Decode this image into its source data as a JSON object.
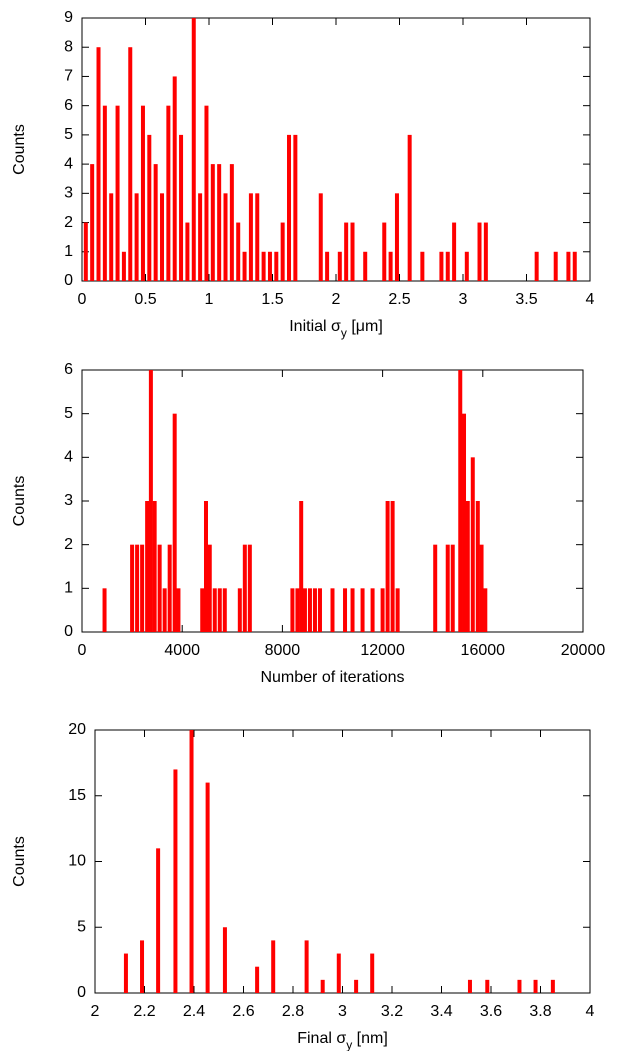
{
  "chart_data": [
    {
      "type": "bar",
      "color": "#ff0000",
      "ylabel": "Counts",
      "xlabel": [
        {
          "text": "Initial σ"
        },
        {
          "text": "y",
          "sub": true
        },
        {
          "text": " [μm]"
        }
      ],
      "xlim": [
        0,
        4
      ],
      "xticks": [
        0,
        0.5,
        1,
        1.5,
        2,
        2.5,
        3,
        3.5,
        4
      ],
      "ylim": [
        0,
        9
      ],
      "yticks": [
        0,
        1,
        2,
        3,
        4,
        5,
        6,
        7,
        8,
        9
      ],
      "x": [
        0.03,
        0.08,
        0.13,
        0.18,
        0.23,
        0.28,
        0.33,
        0.38,
        0.43,
        0.48,
        0.53,
        0.58,
        0.63,
        0.68,
        0.73,
        0.78,
        0.83,
        0.88,
        0.93,
        0.98,
        1.03,
        1.08,
        1.13,
        1.18,
        1.23,
        1.28,
        1.33,
        1.38,
        1.43,
        1.48,
        1.53,
        1.58,
        1.63,
        1.68,
        1.88,
        1.93,
        2.03,
        2.08,
        2.13,
        2.23,
        2.38,
        2.43,
        2.48,
        2.58,
        2.68,
        2.83,
        2.88,
        2.93,
        3.03,
        3.13,
        3.18,
        3.58,
        3.73,
        3.83,
        3.88
      ],
      "values": [
        2,
        4,
        8,
        6,
        3,
        6,
        1,
        8,
        3,
        6,
        5,
        4,
        3,
        6,
        7,
        5,
        2,
        9,
        3,
        6,
        4,
        4,
        3,
        4,
        2,
        1,
        3,
        3,
        1,
        1,
        1,
        2,
        5,
        5,
        3,
        1,
        1,
        2,
        2,
        1,
        2,
        1,
        3,
        5,
        1,
        1,
        1,
        2,
        1,
        2,
        2,
        1,
        1,
        1,
        1
      ]
    },
    {
      "type": "bar",
      "color": "#ff0000",
      "ylabel": "Counts",
      "xlabel": [
        {
          "text": "Number of iterations"
        }
      ],
      "xlim": [
        0,
        20000
      ],
      "xticks": [
        0,
        4000,
        8000,
        12000,
        16000,
        20000
      ],
      "ylim": [
        0,
        6
      ],
      "yticks": [
        0,
        1,
        2,
        3,
        4,
        5,
        6
      ],
      "x": [
        900,
        2000,
        2200,
        2400,
        2600,
        2750,
        2900,
        3100,
        3300,
        3500,
        3700,
        3850,
        4800,
        4950,
        5100,
        5300,
        5500,
        5700,
        6300,
        6500,
        6700,
        8400,
        8600,
        8750,
        8900,
        9100,
        9300,
        9500,
        10000,
        10500,
        10800,
        11200,
        11600,
        12000,
        12200,
        12400,
        12600,
        14100,
        14600,
        14800,
        15100,
        15250,
        15400,
        15600,
        15800,
        15950,
        16100
      ],
      "values": [
        1,
        2,
        2,
        2,
        3,
        6,
        3,
        2,
        1,
        2,
        5,
        1,
        1,
        3,
        2,
        1,
        1,
        1,
        1,
        2,
        2,
        1,
        1,
        3,
        1,
        1,
        1,
        1,
        1,
        1,
        1,
        1,
        1,
        1,
        3,
        3,
        1,
        2,
        2,
        2,
        6,
        5,
        3,
        4,
        3,
        2,
        1
      ]
    },
    {
      "type": "bar",
      "color": "#ff0000",
      "ylabel": "Counts",
      "xlabel": [
        {
          "text": "Final σ"
        },
        {
          "text": "y",
          "sub": true
        },
        {
          "text": " [nm]"
        }
      ],
      "xlim": [
        2,
        4
      ],
      "xticks": [
        2,
        2.2,
        2.4,
        2.6,
        2.8,
        3,
        3.2,
        3.4,
        3.6,
        3.8,
        4
      ],
      "ylim": [
        0,
        20
      ],
      "yticks": [
        0,
        5,
        10,
        15,
        20
      ],
      "x": [
        2.125,
        2.19,
        2.255,
        2.325,
        2.39,
        2.455,
        2.525,
        2.655,
        2.72,
        2.855,
        2.92,
        2.985,
        3.055,
        3.12,
        3.515,
        3.585,
        3.715,
        3.78,
        3.85
      ],
      "values": [
        3,
        4,
        11,
        17,
        20,
        16,
        5,
        2,
        4,
        4,
        1,
        3,
        1,
        3,
        1,
        1,
        1,
        1,
        1
      ]
    }
  ]
}
